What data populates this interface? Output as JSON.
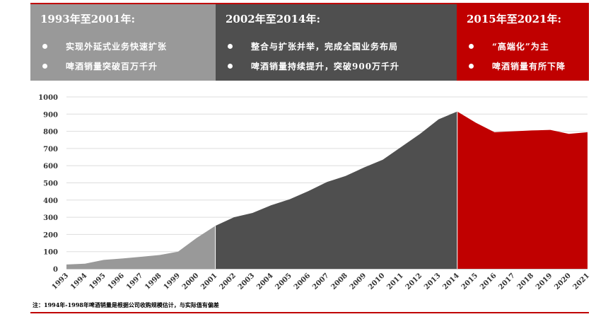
{
  "colors": {
    "accent": "#c00000",
    "phase1": "#999999",
    "phase2": "#4f4f4f",
    "phase3": "#c00000"
  },
  "phases": [
    {
      "title": "1993年至2001年:",
      "bullets": [
        "实现外延式业务快速扩张",
        "啤酒销量突破百万千升"
      ],
      "color": "#999999"
    },
    {
      "title": "2002年至2014年:",
      "bullets": [
        "整合与扩张并举，完成全国业务布局",
        "啤酒销量持续提升，突破900万千升"
      ],
      "color": "#4f4f4f"
    },
    {
      "title": "2015年至2021年:",
      "bullets": [
        "“高端化”为主",
        "啤酒销量有所下降"
      ],
      "color": "#c00000"
    }
  ],
  "note": "注：1994年-1998年啤酒销量是根据公司收购规模估计，与实际值有偏差",
  "chart_data": {
    "type": "area",
    "x": [
      "1993",
      "1994",
      "1995",
      "1996",
      "1997",
      "1998",
      "1999",
      "2000",
      "2001",
      "2002",
      "2003",
      "2004",
      "2005",
      "2006",
      "2007",
      "2008",
      "2009",
      "2010",
      "2011",
      "2012",
      "2013",
      "2014",
      "2015",
      "2016",
      "2017",
      "2018",
      "2019",
      "2020",
      "2021"
    ],
    "values": [
      25,
      30,
      52,
      60,
      70,
      80,
      100,
      180,
      250,
      300,
      325,
      370,
      405,
      452,
      505,
      540,
      590,
      635,
      710,
      785,
      870,
      915,
      850,
      795,
      800,
      805,
      808,
      785,
      795
    ],
    "segments": [
      {
        "from": "1993",
        "to": "2001",
        "color": "#999999"
      },
      {
        "from": "2001",
        "to": "2014",
        "color": "#4f4f4f"
      },
      {
        "from": "2014",
        "to": "2021",
        "color": "#c00000"
      }
    ],
    "ylim": [
      0,
      1000
    ],
    "yticks": [
      0,
      100,
      200,
      300,
      400,
      500,
      600,
      700,
      800,
      900,
      1000
    ],
    "grid": true,
    "title": "",
    "xlabel": "",
    "ylabel": ""
  }
}
